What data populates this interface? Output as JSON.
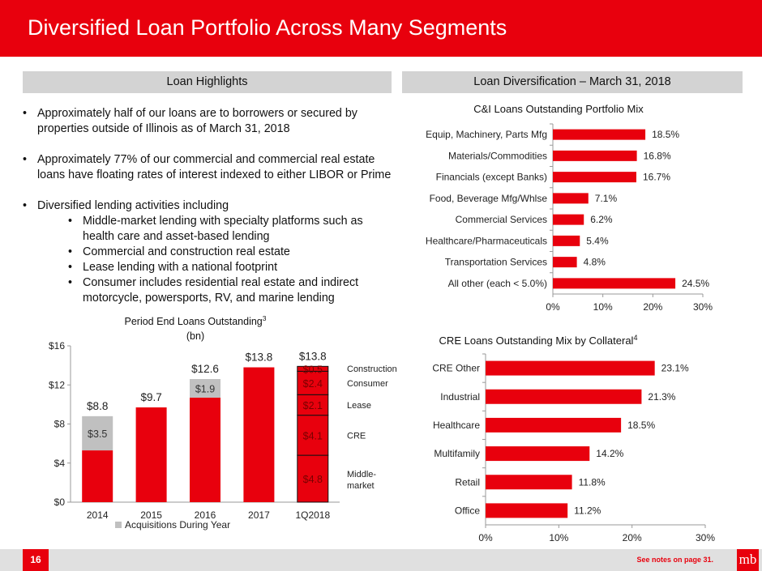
{
  "header": {
    "title": "Diversified Loan Portfolio Across Many Segments"
  },
  "left_bar": {
    "label": "Loan Highlights"
  },
  "right_bar": {
    "label": "Loan Diversification – March 31, 2018"
  },
  "highlights": {
    "b1": [
      "Approximately half of our loans are to borrowers or secured by",
      "properties outside of Illinois as of March 31, 2018"
    ],
    "b2": [
      "Approximately 77% of our commercial and commercial real estate",
      "loans have floating rates of interest indexed to either LIBOR or Prime"
    ],
    "b3": "Diversified lending activities including",
    "s1": [
      "Middle-market lending with specialty platforms such as",
      "health care and asset-based lending"
    ],
    "s2": "Commercial and construction real estate",
    "s3": "Lease lending with a national footprint",
    "s4": [
      "Consumer includes residential real estate and indirect",
      "motorcycle, powersports, RV, and marine lending"
    ]
  },
  "chart_data": [
    {
      "type": "bar",
      "orientation": "horizontal",
      "title": "C&I Loans Outstanding Portfolio Mix",
      "categories": [
        "Equip, Machinery, Parts Mfg",
        "Materials/Commodities",
        "Financials (except Banks)",
        "Food, Beverage Mfg/Whlse",
        "Commercial Services",
        "Healthcare/Pharmaceuticals",
        "Transportation Services",
        "All other (each < 5.0%)"
      ],
      "values": [
        18.5,
        16.8,
        16.7,
        7.1,
        6.2,
        5.4,
        4.8,
        24.5
      ],
      "labels": [
        "18.5%",
        "16.8%",
        "16.7%",
        "7.1%",
        "6.2%",
        "5.4%",
        "4.8%",
        "24.5%"
      ],
      "xlim": [
        0,
        30
      ],
      "ticks": [
        "0%",
        "10%",
        "20%",
        "30%"
      ],
      "color": "#e8000d"
    },
    {
      "type": "bar",
      "orientation": "horizontal",
      "title": "CRE Loans Outstanding Mix by Collateral",
      "title_sup": "4",
      "categories": [
        "CRE Other",
        "Industrial",
        "Healthcare",
        "Multifamily",
        "Retail",
        "Office"
      ],
      "values": [
        23.1,
        21.3,
        18.5,
        14.2,
        11.8,
        11.2
      ],
      "labels": [
        "23.1%",
        "21.3%",
        "18.5%",
        "14.2%",
        "11.8%",
        "11.2%"
      ],
      "xlim": [
        0,
        30
      ],
      "ticks": [
        "0%",
        "10%",
        "20%",
        "30%"
      ],
      "color": "#e8000d"
    },
    {
      "type": "bar",
      "orientation": "vertical",
      "stacked": true,
      "title": "Period End Loans Outstanding",
      "title_sup": "3",
      "subtitle": "(bn)",
      "categories": [
        "2014",
        "2015",
        "2016",
        "2017",
        "1Q2018"
      ],
      "ylim": [
        0,
        16
      ],
      "yticks": [
        "$0",
        "$4",
        "$8",
        "$12",
        "$16"
      ],
      "totals": [
        "$8.8",
        "$9.7",
        "$12.6",
        "$13.8",
        "$13.8"
      ],
      "base_values": [
        5.3,
        9.7,
        10.7,
        13.8
      ],
      "acquisition_values": [
        3.5,
        0,
        1.9,
        0
      ],
      "acquisition_labels": [
        "$3.5",
        "",
        "$1.9",
        ""
      ],
      "segments_1Q2018": [
        {
          "name": "Middle-market",
          "value": 4.8,
          "label": "$4.8"
        },
        {
          "name": "CRE",
          "value": 4.1,
          "label": "$4.1"
        },
        {
          "name": "Lease",
          "value": 2.1,
          "label": "$2.1"
        },
        {
          "name": "Consumer",
          "value": 2.4,
          "label": "$2.4"
        },
        {
          "name": "Construction",
          "value": 0.5,
          "label": "$0.5"
        }
      ],
      "segment_text": {
        "mm1": "Middle-",
        "mm2": "market"
      },
      "legend": "Acquisitions During Year",
      "colors": {
        "base": "#e8000d",
        "acquisition": "#c0c0c0"
      }
    }
  ],
  "footer": {
    "page_number": "16",
    "notes": "See notes on page 31.",
    "logo_text": "mb"
  }
}
